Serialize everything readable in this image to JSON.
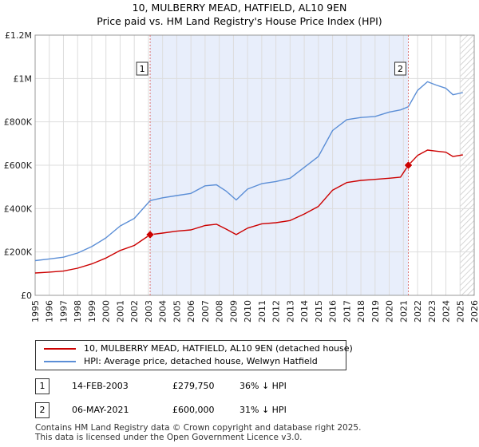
{
  "title_line1": "10, MULBERRY MEAD, HATFIELD, AL10 9EN",
  "title_line2": "Price paid vs. HM Land Registry's House Price Index (HPI)",
  "colors": {
    "property": "#cc0000",
    "hpi": "#5b8ed6",
    "shade": "#e8eefb",
    "marker_line": "#dd7777",
    "grid": "#dddddd"
  },
  "chart_data": {
    "type": "line",
    "title": "10, MULBERRY MEAD, HATFIELD, AL10 9EN",
    "subtitle": "Price paid vs. HM Land Registry's House Price Index (HPI)",
    "xlabel": "",
    "ylabel": "",
    "xlim": [
      1995,
      2026
    ],
    "ylim": [
      0,
      1200000
    ],
    "x_ticks": [
      "1995",
      "1996",
      "1997",
      "1998",
      "1999",
      "2000",
      "2001",
      "2002",
      "2003",
      "2004",
      "2005",
      "2006",
      "2007",
      "2008",
      "2009",
      "2010",
      "2011",
      "2012",
      "2013",
      "2014",
      "2015",
      "2016",
      "2017",
      "2018",
      "2019",
      "2020",
      "2021",
      "2022",
      "2023",
      "2024",
      "2025",
      "2026"
    ],
    "y_ticks": [
      {
        "value": 0,
        "label": "£0"
      },
      {
        "value": 200000,
        "label": "£200K"
      },
      {
        "value": 400000,
        "label": "£400K"
      },
      {
        "value": 600000,
        "label": "£600K"
      },
      {
        "value": 800000,
        "label": "£800K"
      },
      {
        "value": 1000000,
        "label": "£1M"
      },
      {
        "value": 1200000,
        "label": "£1.2M"
      }
    ],
    "grid": true,
    "shaded_range": [
      2003.12,
      2021.35
    ],
    "future_hatch_from": 2025.0,
    "series": [
      {
        "name": "10, MULBERRY MEAD, HATFIELD, AL10 9EN (detached house)",
        "key": "property",
        "x": [
          1995.0,
          1996.0,
          1997.0,
          1998.0,
          1999.0,
          2000.0,
          2001.0,
          2002.0,
          2003.12,
          2004.0,
          2005.0,
          2006.0,
          2007.0,
          2007.8,
          2008.5,
          2009.2,
          2010.0,
          2011.0,
          2012.0,
          2013.0,
          2014.0,
          2015.0,
          2016.0,
          2017.0,
          2018.0,
          2019.0,
          2020.0,
          2020.8,
          2021.35,
          2022.0,
          2022.7,
          2023.3,
          2024.0,
          2024.5,
          2025.2
        ],
        "y": [
          103000,
          107000,
          112000,
          125000,
          145000,
          172000,
          207000,
          230000,
          279750,
          287000,
          296000,
          302000,
          322000,
          328000,
          305000,
          280000,
          310000,
          330000,
          335000,
          345000,
          375000,
          410000,
          485000,
          520000,
          530000,
          535000,
          540000,
          545000,
          600000,
          645000,
          670000,
          665000,
          660000,
          640000,
          648000
        ]
      },
      {
        "name": "HPI: Average price, detached house, Welwyn Hatfield",
        "key": "hpi",
        "x": [
          1995.0,
          1996.0,
          1997.0,
          1998.0,
          1999.0,
          2000.0,
          2001.0,
          2002.0,
          2003.12,
          2004.0,
          2005.0,
          2006.0,
          2007.0,
          2007.8,
          2008.5,
          2009.2,
          2010.0,
          2011.0,
          2012.0,
          2013.0,
          2014.0,
          2015.0,
          2016.0,
          2017.0,
          2018.0,
          2019.0,
          2020.0,
          2020.8,
          2021.35,
          2022.0,
          2022.7,
          2023.3,
          2024.0,
          2024.5,
          2025.2
        ],
        "y": [
          160000,
          168000,
          176000,
          195000,
          225000,
          265000,
          320000,
          355000,
          437000,
          450000,
          460000,
          470000,
          505000,
          510000,
          480000,
          440000,
          490000,
          515000,
          525000,
          540000,
          590000,
          640000,
          760000,
          810000,
          820000,
          825000,
          845000,
          855000,
          870000,
          945000,
          985000,
          970000,
          955000,
          925000,
          935000
        ]
      }
    ],
    "sales": [
      {
        "id": "1",
        "x": 2003.12,
        "y": 279750
      },
      {
        "id": "2",
        "x": 2021.35,
        "y": 600000
      }
    ]
  },
  "legend": {
    "property": "10, MULBERRY MEAD, HATFIELD, AL10 9EN (detached house)",
    "hpi": "HPI: Average price, detached house, Welwyn Hatfield"
  },
  "sales_table": [
    {
      "id": "1",
      "date": "14-FEB-2003",
      "price": "£279,750",
      "hpi_diff": "36% ↓ HPI"
    },
    {
      "id": "2",
      "date": "06-MAY-2021",
      "price": "£600,000",
      "hpi_diff": "31% ↓ HPI"
    }
  ],
  "footer": {
    "line1": "Contains HM Land Registry data © Crown copyright and database right 2025.",
    "line2": "This data is licensed under the Open Government Licence v3.0."
  }
}
